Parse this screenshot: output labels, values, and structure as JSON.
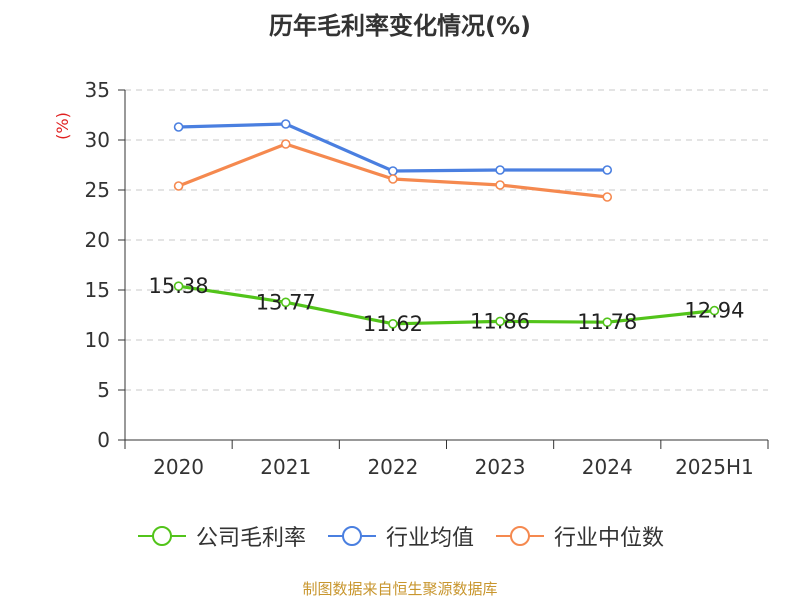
{
  "chart_data": {
    "type": "line",
    "title": "历年毛利率变化情况(%)",
    "ylabel": "(%)",
    "xlabel": "",
    "categories": [
      "2020",
      "2021",
      "2022",
      "2023",
      "2024",
      "2025H1"
    ],
    "ylim": [
      0,
      35
    ],
    "yticks": [
      0,
      5,
      10,
      15,
      20,
      25,
      30,
      35
    ],
    "grid": true,
    "legend_position": "bottom",
    "series": [
      {
        "name": "公司毛利率",
        "color": "#52c41a",
        "values": [
          15.38,
          13.77,
          11.62,
          11.86,
          11.78,
          12.94
        ],
        "labels": [
          "15.38",
          "13.77",
          "11.62",
          "11.86",
          "11.78",
          "12.94"
        ]
      },
      {
        "name": "行业均值",
        "color": "#4a7fe0",
        "values": [
          31.3,
          31.6,
          26.9,
          27.0,
          27.0,
          null
        ]
      },
      {
        "name": "行业中位数",
        "color": "#f5894f",
        "values": [
          25.4,
          29.6,
          26.1,
          25.5,
          24.3,
          null
        ]
      }
    ]
  },
  "footer": {
    "source": "制图数据来自恒生聚源数据库"
  }
}
